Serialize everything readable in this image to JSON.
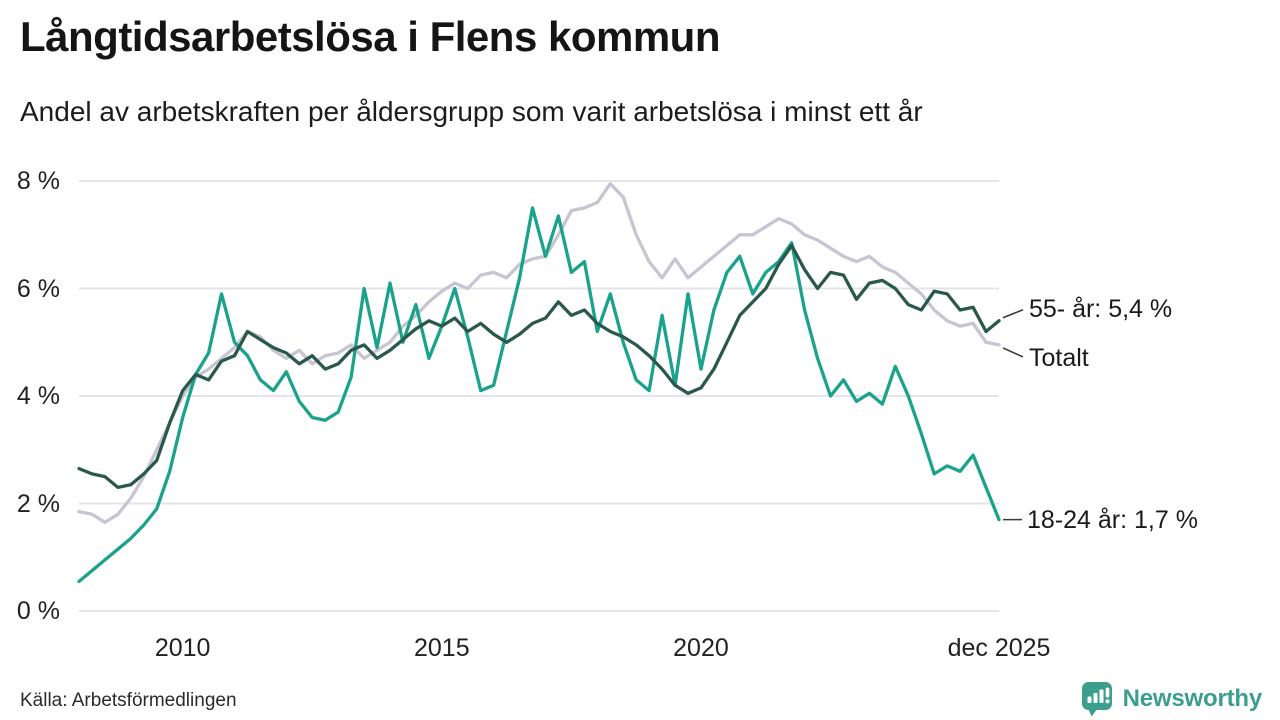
{
  "header": {
    "title": "Långtidsarbetslösa i Flens kommun",
    "subtitle": "Andel av arbetskraften per åldersgrupp som varit arbetslösa i minst ett år"
  },
  "footer": {
    "source": "Källa: Arbetsförmedlingen",
    "brand": "Newsworthy"
  },
  "colors": {
    "totalt": "#c7c5d2",
    "age_55_plus": "#2a594b",
    "age_18_24": "#1aa28d",
    "grid": "#e5e4eb",
    "connector": "#3a3a3a",
    "brand_teal": "#3b9e8f"
  },
  "chart_data": {
    "type": "line",
    "title": "Långtidsarbetslösa i Flens kommun",
    "subtitle": "Andel av arbetskraften per åldersgrupp som varit arbetslösa i minst ett år",
    "unit": "%",
    "grid": true,
    "x_start": 2008.0,
    "x_step": 0.25,
    "xlim": [
      2008.0,
      2025.75
    ],
    "ylim": [
      0,
      8
    ],
    "y_ticks": [
      {
        "label": "8 %",
        "value": 8
      },
      {
        "label": "6 %",
        "value": 6
      },
      {
        "label": "4 %",
        "value": 4
      },
      {
        "label": "2 %",
        "value": 2
      },
      {
        "label": "0 %",
        "value": 0
      }
    ],
    "x_ticks": [
      {
        "label": "2010",
        "year": 2010
      },
      {
        "label": "2015",
        "year": 2015
      },
      {
        "label": "2020",
        "year": 2020
      },
      {
        "label": "dec 2025",
        "year": 2025.75
      }
    ],
    "series": [
      {
        "name": "Totalt",
        "end_label": "Totalt",
        "end_value": 4.95,
        "color": "#c7c5d2",
        "label_anchor": "down",
        "values": [
          1.85,
          1.8,
          1.65,
          1.8,
          2.1,
          2.5,
          3.0,
          3.5,
          4.0,
          4.35,
          4.5,
          4.7,
          4.9,
          5.2,
          5.1,
          4.85,
          4.7,
          4.85,
          4.6,
          4.75,
          4.8,
          4.95,
          4.7,
          4.85,
          5.0,
          5.3,
          5.5,
          5.75,
          5.95,
          6.1,
          6.0,
          6.25,
          6.3,
          6.2,
          6.45,
          6.55,
          6.6,
          7.0,
          7.45,
          7.5,
          7.6,
          7.95,
          7.7,
          7.0,
          6.5,
          6.2,
          6.55,
          6.2,
          6.4,
          6.6,
          6.8,
          7.0,
          7.0,
          7.15,
          7.3,
          7.2,
          7.0,
          6.9,
          6.75,
          6.6,
          6.5,
          6.6,
          6.4,
          6.3,
          6.1,
          5.9,
          5.6,
          5.4,
          5.3,
          5.35,
          5.0,
          4.95
        ]
      },
      {
        "name": "18-24 år",
        "end_label": "18-24 år: 1,7 %",
        "end_value": 1.7,
        "color": "#1aa28d",
        "label_anchor": "flat",
        "values": [
          0.55,
          0.75,
          0.95,
          1.15,
          1.35,
          1.6,
          1.9,
          2.6,
          3.6,
          4.4,
          4.8,
          5.9,
          5.0,
          4.75,
          4.3,
          4.1,
          4.45,
          3.9,
          3.6,
          3.55,
          3.7,
          4.35,
          6.0,
          4.9,
          6.1,
          5.0,
          5.7,
          4.7,
          5.3,
          6.0,
          5.1,
          4.1,
          4.2,
          5.2,
          6.2,
          7.5,
          6.6,
          7.35,
          6.3,
          6.5,
          5.2,
          5.9,
          5.0,
          4.3,
          4.1,
          5.5,
          4.2,
          5.9,
          4.5,
          5.6,
          6.3,
          6.6,
          5.9,
          6.3,
          6.5,
          6.85,
          5.6,
          4.7,
          4.0,
          4.3,
          3.9,
          4.05,
          3.85,
          4.55,
          4.0,
          3.3,
          2.55,
          2.7,
          2.6,
          2.9,
          2.3,
          1.7
        ]
      },
      {
        "name": "55- år",
        "end_label": "55- år: 5,4 %",
        "end_value": 5.4,
        "color": "#2a594b",
        "label_anchor": "up",
        "values": [
          2.65,
          2.55,
          2.5,
          2.3,
          2.35,
          2.55,
          2.8,
          3.5,
          4.1,
          4.4,
          4.3,
          4.65,
          4.75,
          5.2,
          5.05,
          4.9,
          4.8,
          4.6,
          4.75,
          4.5,
          4.6,
          4.85,
          4.95,
          4.7,
          4.85,
          5.05,
          5.25,
          5.4,
          5.3,
          5.45,
          5.2,
          5.35,
          5.15,
          5.0,
          5.15,
          5.35,
          5.45,
          5.75,
          5.5,
          5.6,
          5.35,
          5.2,
          5.1,
          4.95,
          4.75,
          4.5,
          4.2,
          4.05,
          4.15,
          4.5,
          5.0,
          5.5,
          5.75,
          6.0,
          6.45,
          6.8,
          6.35,
          6.0,
          6.3,
          6.25,
          5.8,
          6.1,
          6.15,
          6.0,
          5.7,
          5.6,
          5.95,
          5.9,
          5.6,
          5.65,
          5.2,
          5.4
        ]
      }
    ]
  }
}
